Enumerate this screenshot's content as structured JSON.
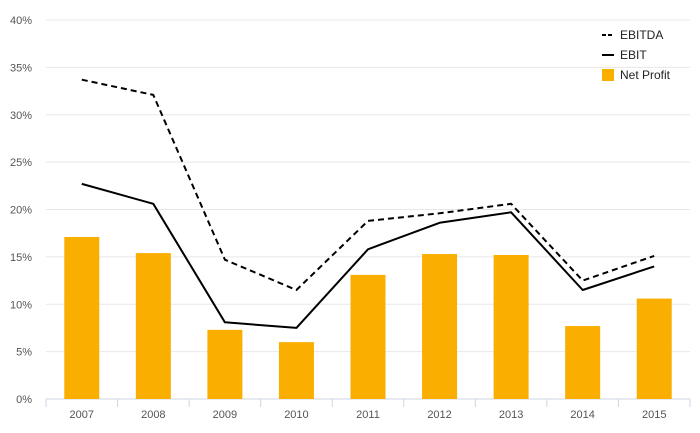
{
  "chart_data": {
    "type": "bar",
    "categories": [
      "2007",
      "2008",
      "2009",
      "2010",
      "2011",
      "2012",
      "2013",
      "2014",
      "2015"
    ],
    "series": [
      {
        "name": "Net Profit",
        "kind": "bar",
        "color": "#F9AE00",
        "values": [
          17.1,
          15.4,
          7.3,
          6.0,
          13.1,
          15.3,
          15.2,
          7.7,
          10.6
        ]
      },
      {
        "name": "EBITDA",
        "kind": "line",
        "style": "dashed",
        "color": "#000000",
        "values": [
          33.7,
          32.1,
          14.7,
          11.5,
          18.8,
          19.6,
          20.6,
          12.5,
          15.1
        ]
      },
      {
        "name": "EBIT",
        "kind": "line",
        "style": "solid",
        "color": "#000000",
        "values": [
          22.7,
          20.6,
          8.1,
          7.5,
          15.8,
          18.6,
          19.7,
          11.5,
          14.0
        ]
      }
    ],
    "yticks": [
      "0%",
      "5%",
      "10%",
      "15%",
      "20%",
      "25%",
      "30%",
      "35%",
      "40%"
    ],
    "ylim": [
      0,
      40
    ],
    "title": "",
    "xlabel": "",
    "ylabel": "",
    "grid": true,
    "legend_position": "top-right",
    "legend": [
      {
        "label": "EBITDA",
        "marker": "dashed-line"
      },
      {
        "label": "EBIT",
        "marker": "solid-line"
      },
      {
        "label": "Net Profit",
        "marker": "square"
      }
    ]
  }
}
